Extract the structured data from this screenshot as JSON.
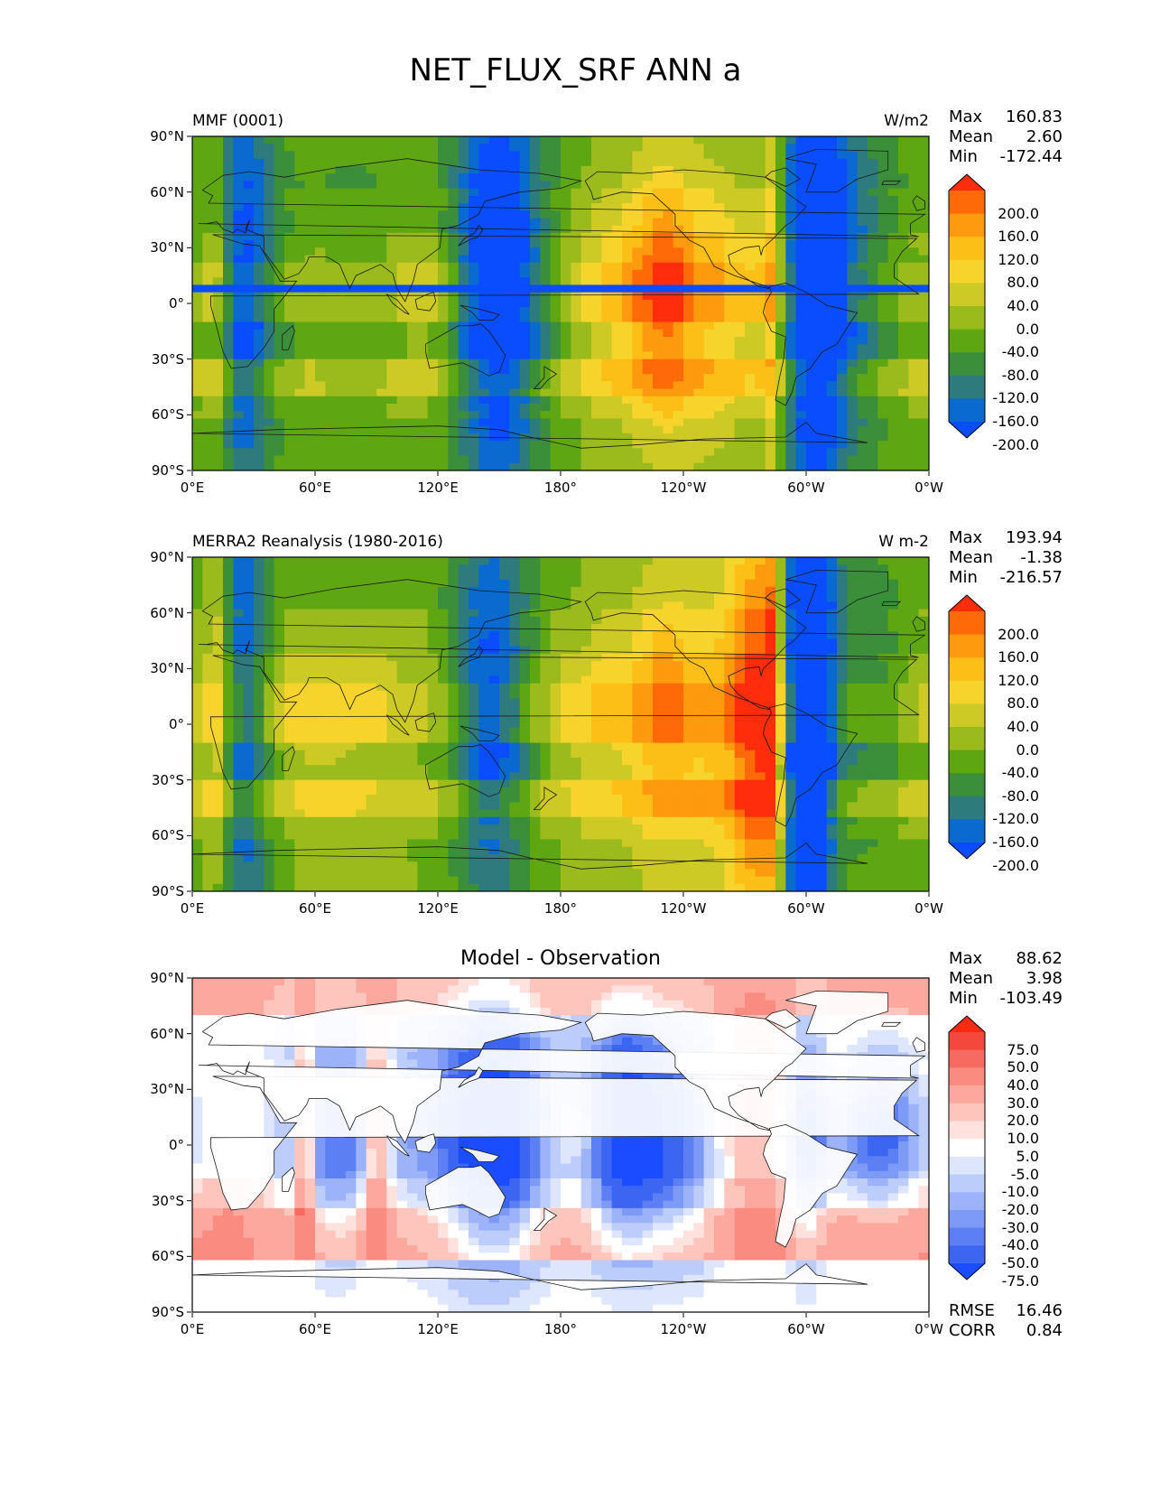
{
  "title": "NET_FLUX_SRF ANN a",
  "lat_ticks": [
    "90°N",
    "60°N",
    "30°N",
    "0°",
    "30°S",
    "60°S",
    "90°S"
  ],
  "lon_ticks": [
    "0°E",
    "60°E",
    "120°E",
    "180°",
    "120°W",
    "60°W",
    "0°W"
  ],
  "panels": [
    {
      "id": "test",
      "left_title": "MMF (0001)",
      "center_title": "",
      "right_title": "W/m2",
      "stats": [
        {
          "label": "Max",
          "value": "160.83"
        },
        {
          "label": "Mean",
          "value": "2.60"
        },
        {
          "label": "Min",
          "value": "-172.44"
        }
      ],
      "colorbar": {
        "labels": [
          "200.0",
          "160.0",
          "120.0",
          "80.0",
          "40.0",
          "0.0",
          "-40.0",
          "-80.0",
          "-120.0",
          "-160.0",
          "-200.0"
        ],
        "colors": [
          "#ff2d0b",
          "#ff6a08",
          "#fd9a0d",
          "#fbbf17",
          "#f7d42c",
          "#cdc925",
          "#9bbb1d",
          "#5ea712",
          "#3c8f3a",
          "#2e7b7e",
          "#0a6ad0",
          "#0a4dff"
        ]
      }
    },
    {
      "id": "reference",
      "left_title": "MERRA2 Reanalysis (1980-2016)",
      "center_title": "",
      "right_title": "W m-2",
      "stats": [
        {
          "label": "Max",
          "value": "193.94"
        },
        {
          "label": "Mean",
          "value": "-1.38"
        },
        {
          "label": "Min",
          "value": "-216.57"
        }
      ],
      "colorbar": {
        "labels": [
          "200.0",
          "160.0",
          "120.0",
          "80.0",
          "40.0",
          "0.0",
          "-40.0",
          "-80.0",
          "-120.0",
          "-160.0",
          "-200.0"
        ],
        "colors": [
          "#ff2d0b",
          "#ff6a08",
          "#fd9a0d",
          "#fbbf17",
          "#f7d42c",
          "#cdc925",
          "#9bbb1d",
          "#5ea712",
          "#3c8f3a",
          "#2e7b7e",
          "#0a6ad0",
          "#0a4dff"
        ]
      }
    },
    {
      "id": "difference",
      "left_title": "",
      "center_title": "Model - Observation",
      "right_title": "",
      "stats": [
        {
          "label": "Max",
          "value": "88.62"
        },
        {
          "label": "Mean",
          "value": "3.98"
        },
        {
          "label": "Min",
          "value": "-103.49"
        }
      ],
      "bottom_stats": [
        {
          "label": "RMSE",
          "value": "16.46"
        },
        {
          "label": "CORR",
          "value": "0.84"
        }
      ],
      "colorbar": {
        "labels": [
          "75.0",
          "50.0",
          "40.0",
          "30.0",
          "20.0",
          "10.0",
          "5.0",
          "-5.0",
          "-10.0",
          "-20.0",
          "-30.0",
          "-40.0",
          "-50.0",
          "-75.0"
        ],
        "colors": [
          "#ff2a12",
          "#f4483c",
          "#f76a5f",
          "#fa8b80",
          "#fca89f",
          "#fec5bd",
          "#ffe2de",
          "#ffffff",
          "#dde6fd",
          "#bccdfb",
          "#9cb3f9",
          "#7c9af6",
          "#5c80f4",
          "#3c66f1",
          "#1b4cff"
        ]
      }
    }
  ],
  "chart_data": [
    {
      "type": "heatmap",
      "title": "MMF (0001)",
      "units": "W/m2",
      "xlim": [
        0,
        360
      ],
      "ylim": [
        -90,
        90
      ],
      "contour_levels": [
        -200,
        -160,
        -120,
        -80,
        -40,
        0,
        40,
        80,
        120,
        160,
        200
      ],
      "stats": {
        "max": 160.83,
        "mean": 2.6,
        "min": -172.44
      }
    },
    {
      "type": "heatmap",
      "title": "MERRA2 Reanalysis (1980-2016)",
      "units": "W m-2",
      "xlim": [
        0,
        360
      ],
      "ylim": [
        -90,
        90
      ],
      "contour_levels": [
        -200,
        -160,
        -120,
        -80,
        -40,
        0,
        40,
        80,
        120,
        160,
        200
      ],
      "stats": {
        "max": 193.94,
        "mean": -1.38,
        "min": -216.57
      }
    },
    {
      "type": "heatmap",
      "title": "Model - Observation",
      "xlim": [
        0,
        360
      ],
      "ylim": [
        -90,
        90
      ],
      "contour_levels": [
        -75,
        -50,
        -40,
        -30,
        -20,
        -10,
        -5,
        5,
        10,
        20,
        30,
        40,
        50,
        75
      ],
      "stats": {
        "max": 88.62,
        "mean": 3.98,
        "min": -103.49,
        "rmse": 16.46,
        "corr": 0.84
      }
    }
  ]
}
